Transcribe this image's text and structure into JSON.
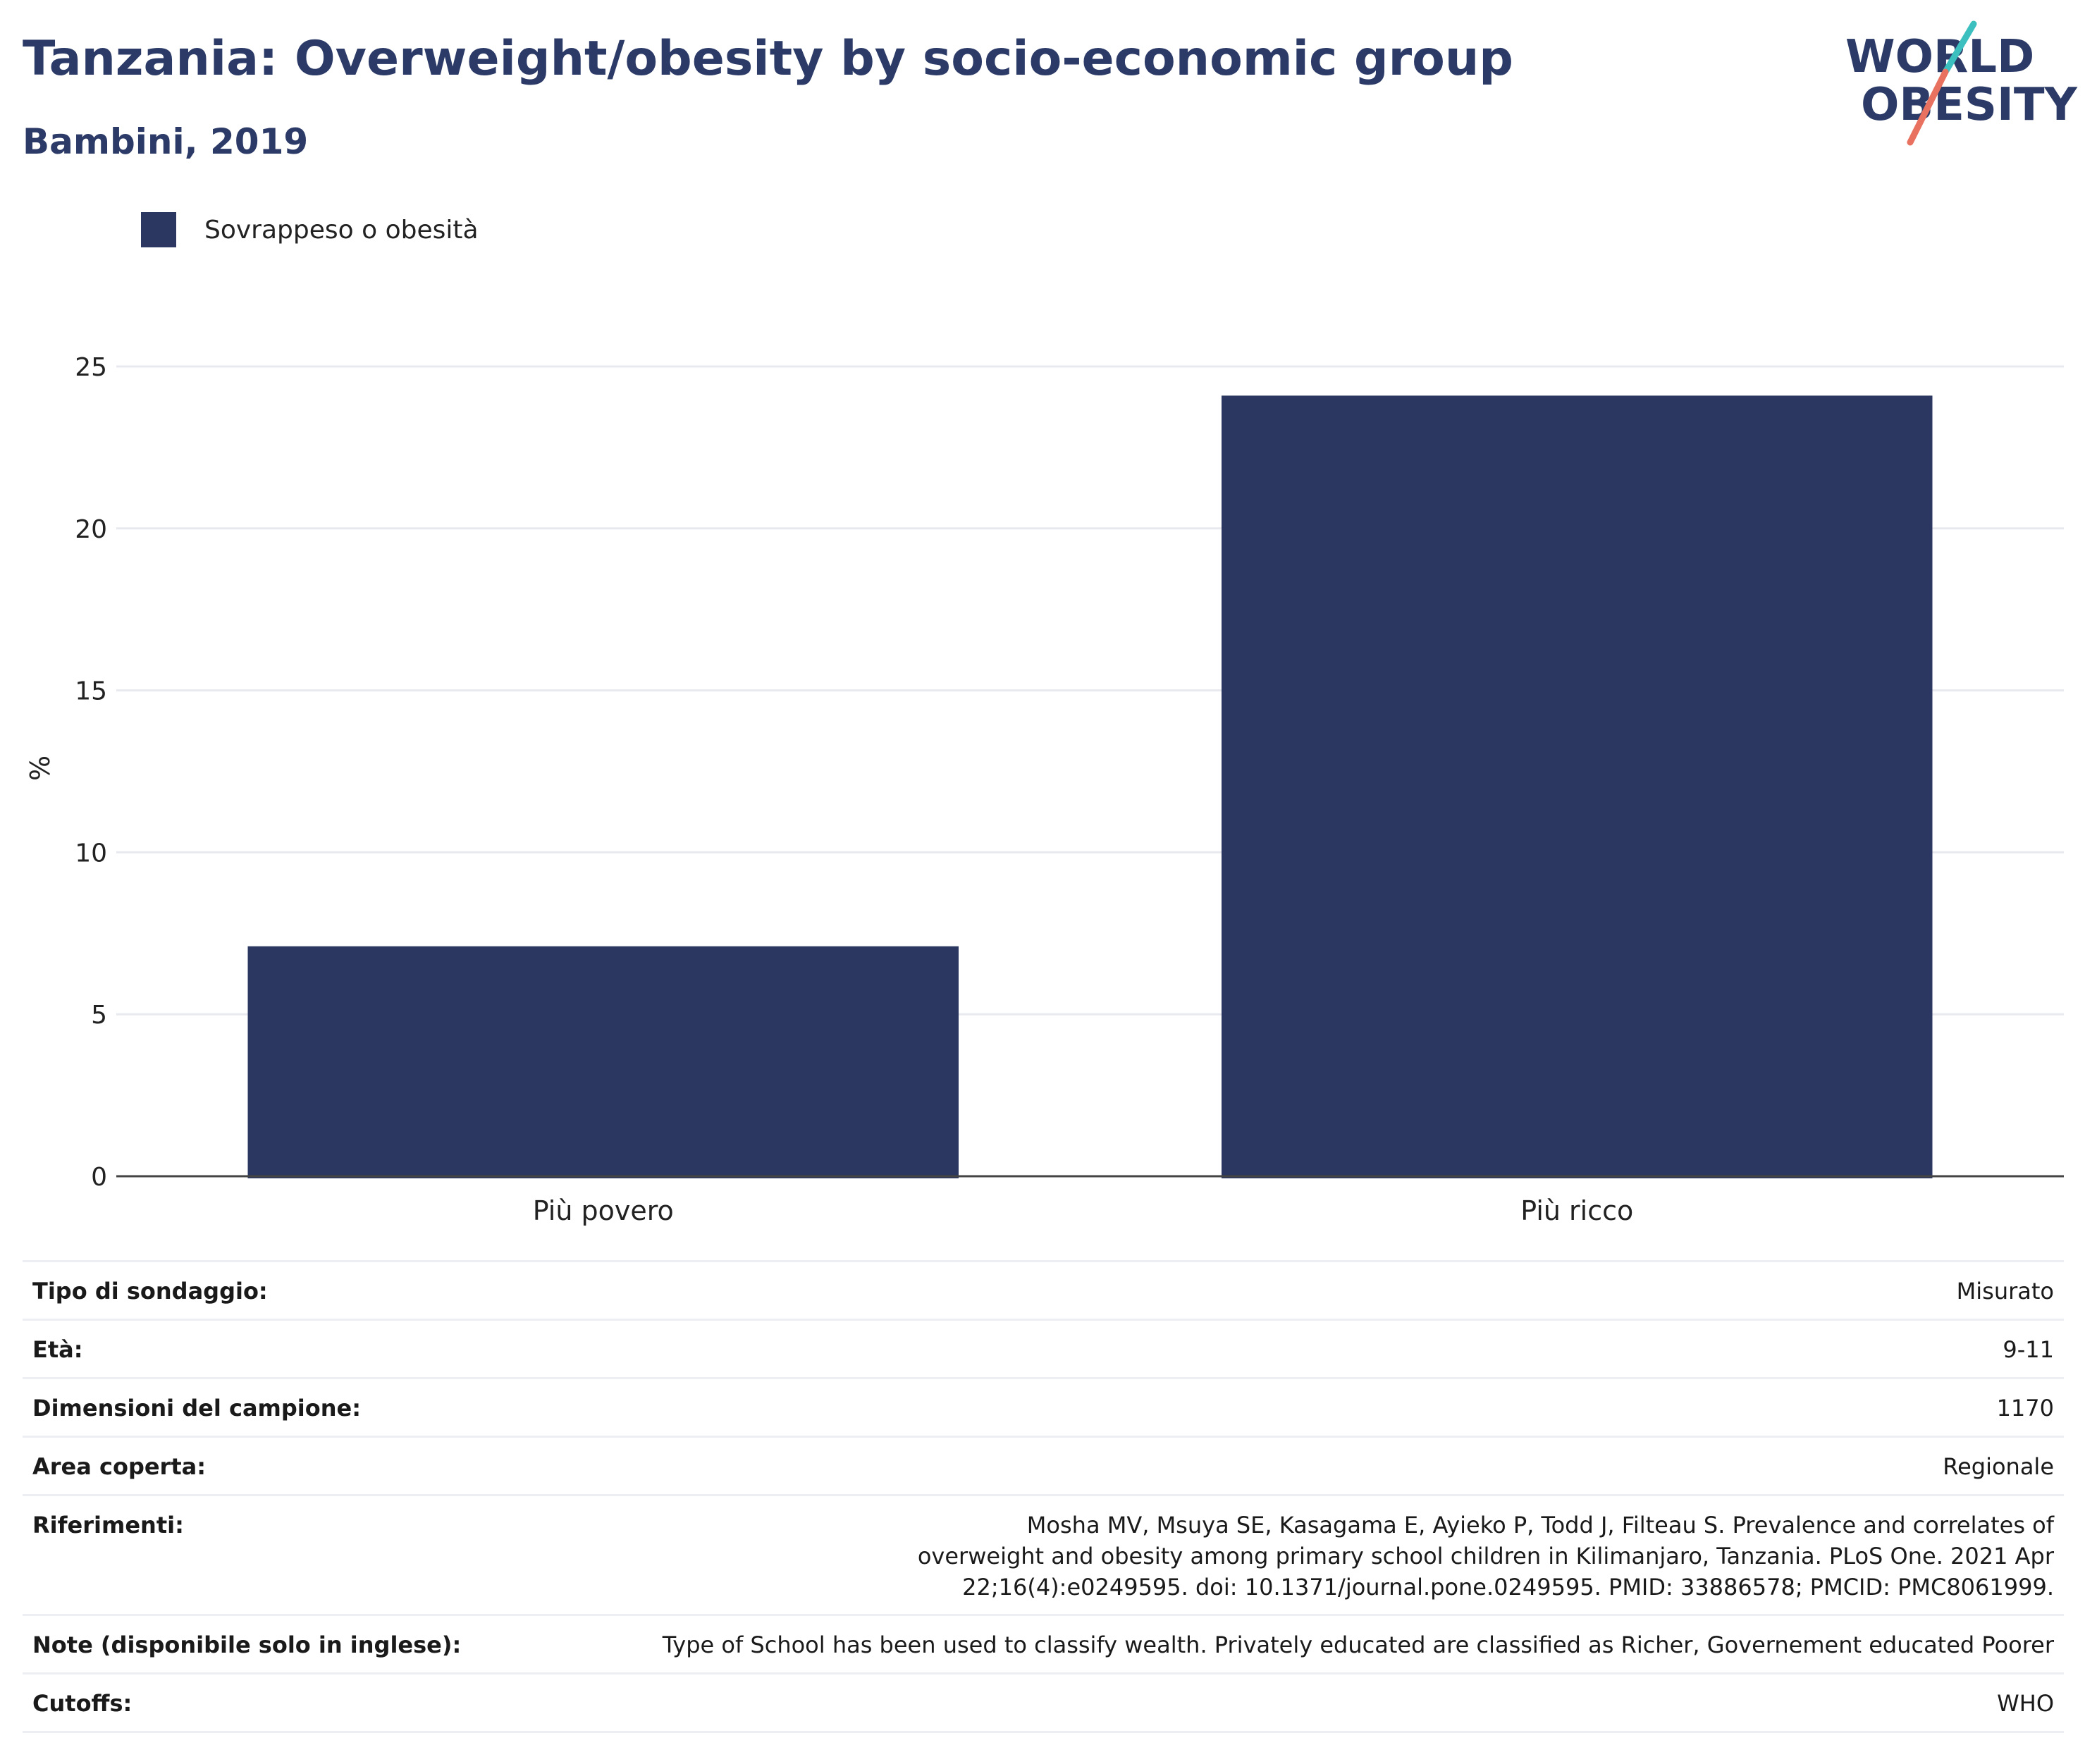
{
  "header": {
    "title": "Tanzania: Overweight/obesity by socio-economic group",
    "subtitle": "Bambini, 2019"
  },
  "logo": {
    "line1": "WORLD",
    "line2": "OBESITY",
    "colors": {
      "text": "#2b3a67",
      "teal": "#3bbfbf",
      "coral": "#e8715f"
    }
  },
  "colors": {
    "bar": "#2b3761",
    "text": "#2b3a67",
    "grid": "#e8e9ef",
    "axis": "#444444"
  },
  "chart_data": {
    "type": "bar",
    "categories": [
      "Più povero",
      "Più ricco"
    ],
    "series": [
      {
        "name": "Sovrappeso o obesità",
        "values": [
          7.1,
          24.1
        ]
      }
    ],
    "ylabel": "%",
    "ylim": [
      0,
      25
    ],
    "yticks": [
      0,
      5,
      10,
      15,
      20,
      25
    ],
    "grid": true,
    "legend": "top-left"
  },
  "info": {
    "rows": [
      {
        "label": "Tipo di sondaggio:",
        "value": "Misurato"
      },
      {
        "label": "Età:",
        "value": "9-11"
      },
      {
        "label": "Dimensioni del campione:",
        "value": "1170"
      },
      {
        "label": "Area coperta:",
        "value": "Regionale"
      },
      {
        "label": "Riferimenti:",
        "value": "Mosha MV, Msuya SE, Kasagama E, Ayieko P, Todd J, Filteau S. Prevalence and correlates of overweight and obesity among primary school children in Kilimanjaro, Tanzania. PLoS One. 2021 Apr 22;16(4):e0249595. doi: 10.1371/journal.pone.0249595. PMID: 33886578; PMCID: PMC8061999."
      },
      {
        "label": "Note (disponibile solo in inglese):",
        "value": "Type of School has been used to classify wealth. Privately educated are classified as Richer, Governement educated Poorer"
      },
      {
        "label": "Cutoffs:",
        "value": "WHO"
      }
    ]
  }
}
